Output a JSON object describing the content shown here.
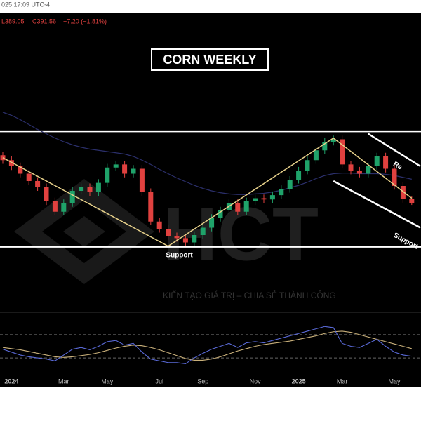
{
  "chart_data": {
    "type": "candlestick",
    "title": "CORN WEEKLY",
    "header": {
      "time": "025 17:09 UTC-4",
      "low": "L389.05",
      "close": "C391.56",
      "change": "−7.20 (−1.81%)"
    },
    "up_color": "#1fa36a",
    "down_color": "#e0413f",
    "ylim": [
      220,
      700
    ],
    "open": [
      470,
      462,
      452,
      440,
      428,
      418,
      395,
      378,
      392,
      412,
      418,
      410,
      425,
      450,
      455,
      440,
      448,
      410,
      362,
      350,
      338,
      335,
      328,
      340,
      352,
      368,
      380,
      392,
      378,
      395,
      400,
      398,
      405,
      415,
      430,
      445,
      462,
      478,
      492,
      496,
      455,
      445,
      440,
      452,
      468,
      448,
      420,
      398.76
    ],
    "high": [
      476,
      468,
      458,
      446,
      434,
      424,
      401,
      398,
      418,
      424,
      424,
      431,
      456,
      461,
      461,
      454,
      454,
      416,
      368,
      356,
      344,
      341,
      346,
      358,
      374,
      386,
      398,
      398,
      401,
      406,
      406,
      411,
      421,
      436,
      451,
      468,
      484,
      498,
      502,
      502,
      461,
      451,
      458,
      474,
      474,
      454,
      426,
      404
    ],
    "low": [
      456,
      446,
      434,
      422,
      412,
      389,
      372,
      372,
      386,
      406,
      404,
      404,
      419,
      444,
      434,
      434,
      404,
      356,
      344,
      332,
      329,
      322,
      322,
      334,
      346,
      362,
      374,
      372,
      372,
      389,
      392,
      392,
      399,
      409,
      424,
      439,
      456,
      472,
      486,
      449,
      439,
      434,
      434,
      446,
      442,
      414,
      392.76,
      389.05
    ],
    "close": [
      462,
      452,
      440,
      428,
      418,
      395,
      378,
      392,
      412,
      418,
      410,
      425,
      450,
      455,
      440,
      448,
      410,
      362,
      350,
      338,
      335,
      328,
      340,
      352,
      368,
      380,
      392,
      378,
      395,
      400,
      398,
      405,
      415,
      430,
      445,
      462,
      478,
      492,
      496,
      455,
      445,
      440,
      452,
      468,
      448,
      420,
      398.76,
      391.56
    ],
    "moving_average": {
      "color": "#2b2f6b",
      "values": [
        540,
        535,
        528,
        520,
        512,
        505,
        498,
        492,
        487,
        483,
        480,
        478,
        476,
        474,
        472,
        468,
        462,
        455,
        447,
        440,
        433,
        427,
        421,
        416,
        412,
        409,
        407,
        406,
        406,
        407,
        408,
        410,
        413,
        417,
        421,
        426,
        432,
        437,
        440,
        441,
        441,
        440,
        440,
        440,
        439,
        437,
        434,
        431
      ]
    },
    "levels": [
      509,
      321
    ],
    "zigzag": {
      "color": "#e6d08a",
      "points": [
        {
          "index": 0,
          "price": 466
        },
        {
          "index": 19,
          "price": 322
        },
        {
          "index": 38,
          "price": 498
        },
        {
          "index": 47,
          "price": 400
        }
      ]
    },
    "channel": [
      {
        "label": "Re",
        "points": [
          {
            "index": 42,
            "price": 505
          },
          {
            "index": 48,
            "price": 452
          }
        ]
      },
      {
        "label": "Support",
        "points": [
          {
            "index": 38,
            "price": 428
          },
          {
            "index": 48,
            "price": 352
          }
        ]
      }
    ],
    "support_label": "Support",
    "xlabels": [
      {
        "index": 1,
        "label": "2024"
      },
      {
        "index": 7,
        "label": "Mar"
      },
      {
        "index": 12,
        "label": "May"
      },
      {
        "index": 18,
        "label": "Jul"
      },
      {
        "index": 23,
        "label": "Sep"
      },
      {
        "index": 29,
        "label": "Nov"
      },
      {
        "index": 34,
        "label": "2025"
      },
      {
        "index": 39,
        "label": "Mar"
      },
      {
        "index": 45,
        "label": "May"
      }
    ],
    "oscillator": {
      "ylim": [
        0,
        100
      ],
      "bands": [
        70,
        30
      ],
      "line": {
        "color": "#5a6ad8",
        "values": [
          45,
          40,
          35,
          32,
          30,
          28,
          25,
          35,
          45,
          48,
          44,
          50,
          58,
          60,
          52,
          55,
          40,
          28,
          25,
          22,
          22,
          20,
          30,
          38,
          45,
          50,
          55,
          48,
          56,
          58,
          56,
          60,
          64,
          68,
          72,
          76,
          80,
          84,
          82,
          55,
          50,
          48,
          55,
          62,
          50,
          40,
          35,
          33
        ]
      },
      "signal": {
        "color": "#c9b07a",
        "values": [
          48,
          46,
          44,
          41,
          38,
          35,
          32,
          31,
          32,
          34,
          36,
          39,
          43,
          47,
          50,
          52,
          51,
          48,
          44,
          39,
          34,
          29,
          26,
          26,
          28,
          32,
          37,
          42,
          46,
          50,
          53,
          55,
          57,
          59,
          62,
          65,
          68,
          72,
          75,
          76,
          74,
          70,
          66,
          62,
          58,
          54,
          50,
          46
        ]
      }
    },
    "watermark": {
      "brand": "HCT",
      "slogan": "KIẾN TẠO GIÁ TRỊ – CHIA SẺ THÀNH CÔNG"
    }
  }
}
